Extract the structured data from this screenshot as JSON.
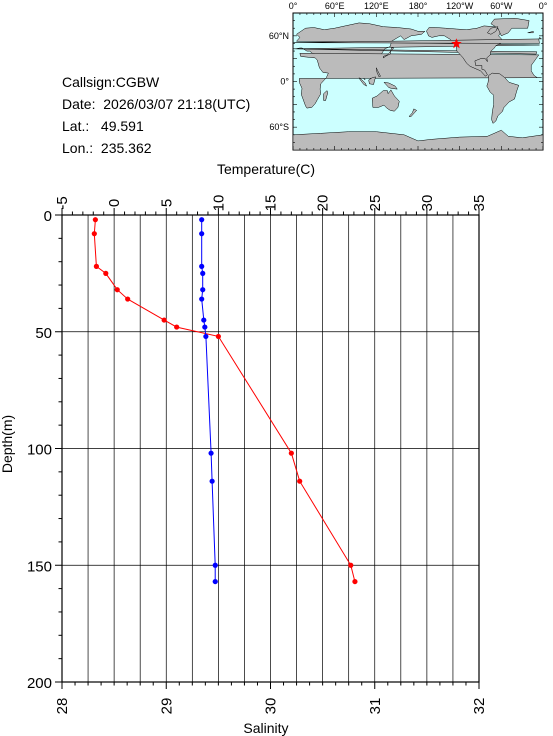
{
  "info": {
    "callsign_label": "Callsign:",
    "callsign": "CGBW",
    "date_label": "Date:",
    "date": "2026/03/07 21:18(UTC)",
    "lat_label": "Lat.:",
    "lat": "49.591",
    "lon_label": "Lon.:",
    "lon": "235.362"
  },
  "map": {
    "lon_labels": [
      "0°",
      "60°E",
      "120°E",
      "180°",
      "120°W",
      "60°W",
      "0°"
    ],
    "lat_labels": [
      "60°N",
      "0°",
      "60°S"
    ],
    "ocean_color": "#ccffff",
    "land_color": "#bbbbbb",
    "marker_color": "#ff0000",
    "marker_icon": "star-icon",
    "station_lon": 235.362,
    "station_lat": 49.591
  },
  "chart_data": {
    "type": "line",
    "temperature_axis": {
      "label": "Temperature(C)",
      "ticks": [
        -5,
        0,
        5,
        10,
        15,
        20,
        25,
        30,
        35
      ],
      "lim": [
        -5,
        35
      ]
    },
    "salinity_axis": {
      "label": "Salinity",
      "ticks": [
        28,
        29,
        30,
        31,
        32
      ],
      "lim": [
        28,
        32
      ]
    },
    "depth_axis": {
      "label": "Depth(m)",
      "ticks": [
        0,
        50,
        100,
        150,
        200
      ],
      "lim": [
        0,
        200
      ],
      "inverted": true
    },
    "grid": true,
    "series": [
      {
        "color": "#ff0000",
        "axis": "temperature",
        "points": [
          {
            "depth": 2,
            "value": -1.8
          },
          {
            "depth": 8,
            "value": -1.9
          },
          {
            "depth": 22,
            "value": -1.7
          },
          {
            "depth": 25,
            "value": -0.8
          },
          {
            "depth": 32,
            "value": 0.3
          },
          {
            "depth": 36,
            "value": 1.3
          },
          {
            "depth": 45,
            "value": 4.8
          },
          {
            "depth": 48,
            "value": 6.0
          },
          {
            "depth": 52,
            "value": 10.0
          },
          {
            "depth": 102,
            "value": 17.0
          },
          {
            "depth": 114,
            "value": 17.8
          },
          {
            "depth": 150,
            "value": 22.7
          },
          {
            "depth": 157,
            "value": 23.1
          }
        ]
      },
      {
        "color": "#0000ff",
        "axis": "salinity",
        "points": [
          {
            "depth": 2,
            "value": 29.34
          },
          {
            "depth": 8,
            "value": 29.34
          },
          {
            "depth": 22,
            "value": 29.34
          },
          {
            "depth": 25,
            "value": 29.35
          },
          {
            "depth": 32,
            "value": 29.35
          },
          {
            "depth": 36,
            "value": 29.34
          },
          {
            "depth": 45,
            "value": 29.36
          },
          {
            "depth": 48,
            "value": 29.37
          },
          {
            "depth": 52,
            "value": 29.38
          },
          {
            "depth": 102,
            "value": 29.43
          },
          {
            "depth": 114,
            "value": 29.44
          },
          {
            "depth": 150,
            "value": 29.47
          },
          {
            "depth": 157,
            "value": 29.47
          }
        ]
      }
    ]
  }
}
